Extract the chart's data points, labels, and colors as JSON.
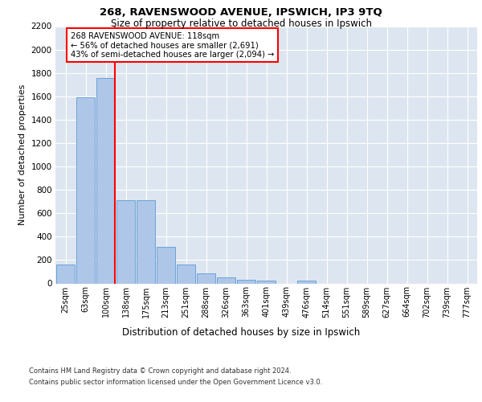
{
  "title_line1": "268, RAVENSWOOD AVENUE, IPSWICH, IP3 9TQ",
  "title_line2": "Size of property relative to detached houses in Ipswich",
  "xlabel": "Distribution of detached houses by size in Ipswich",
  "ylabel": "Number of detached properties",
  "categories": [
    "25sqm",
    "63sqm",
    "100sqm",
    "138sqm",
    "175sqm",
    "213sqm",
    "251sqm",
    "288sqm",
    "326sqm",
    "363sqm",
    "401sqm",
    "439sqm",
    "476sqm",
    "514sqm",
    "551sqm",
    "589sqm",
    "627sqm",
    "664sqm",
    "702sqm",
    "739sqm",
    "777sqm"
  ],
  "values": [
    160,
    1590,
    1760,
    710,
    710,
    315,
    160,
    85,
    50,
    30,
    25,
    0,
    25,
    0,
    0,
    0,
    0,
    0,
    0,
    0,
    0
  ],
  "bar_color": "#aec6e8",
  "bar_edge_color": "#5b9bd5",
  "vline_index": 2,
  "vline_color": "red",
  "annotation_text": "268 RAVENSWOOD AVENUE: 118sqm\n← 56% of detached houses are smaller (2,691)\n43% of semi-detached houses are larger (2,094) →",
  "annotation_box_color": "white",
  "annotation_box_edge": "red",
  "ylim": [
    0,
    2200
  ],
  "yticks": [
    0,
    200,
    400,
    600,
    800,
    1000,
    1200,
    1400,
    1600,
    1800,
    2000,
    2200
  ],
  "bg_color": "#dde6f0",
  "grid_color": "white",
  "footer_line1": "Contains HM Land Registry data © Crown copyright and database right 2024.",
  "footer_line2": "Contains public sector information licensed under the Open Government Licence v3.0."
}
